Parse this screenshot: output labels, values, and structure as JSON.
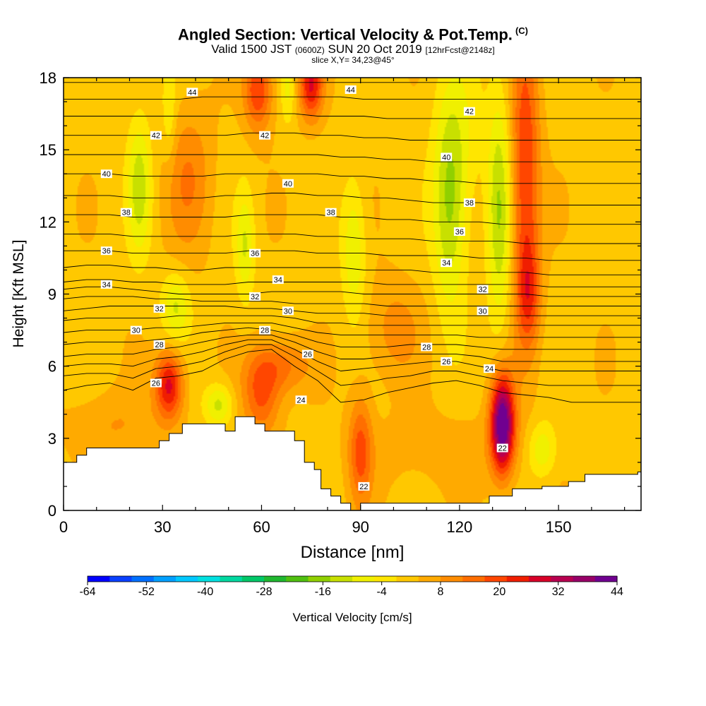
{
  "header": {
    "title": "Angled Section: Vertical Velocity & Pot.Temp.",
    "copyright": "(C)",
    "valid_prefix": "Valid 1500 JST",
    "valid_zulu": "(0600Z)",
    "valid_date": "SUN 20 Oct 2019",
    "forecast": "[12hrFcst@2148z]",
    "slice": "slice X,Y= 34,23@45°"
  },
  "chart_data": {
    "type": "heatmap",
    "xlabel": "Distance [nm]",
    "ylabel": "Height [Kft MSL]",
    "xlim": [
      0,
      175
    ],
    "ylim": [
      0,
      18
    ],
    "x_ticks": [
      "0",
      "30",
      "60",
      "90",
      "120",
      "150"
    ],
    "y_ticks": [
      "0",
      "3",
      "6",
      "9",
      "12",
      "15",
      "18"
    ],
    "terrain_top_kft": [
      [
        0,
        2.0
      ],
      [
        4,
        2.0
      ],
      [
        4,
        2.3
      ],
      [
        7,
        2.3
      ],
      [
        7,
        2.6
      ],
      [
        11,
        2.6
      ],
      [
        11,
        2.6
      ],
      [
        29,
        2.6
      ],
      [
        29,
        2.9
      ],
      [
        32,
        2.9
      ],
      [
        32,
        3.2
      ],
      [
        36,
        3.2
      ],
      [
        36,
        3.6
      ],
      [
        49,
        3.6
      ],
      [
        49,
        3.3
      ],
      [
        52,
        3.3
      ],
      [
        52,
        3.9
      ],
      [
        58,
        3.9
      ],
      [
        58,
        3.6
      ],
      [
        61,
        3.6
      ],
      [
        61,
        3.3
      ],
      [
        70,
        3.3
      ],
      [
        70,
        2.9
      ],
      [
        73,
        2.9
      ],
      [
        73,
        2.0
      ],
      [
        76,
        2.0
      ],
      [
        76,
        1.7
      ],
      [
        78,
        1.7
      ],
      [
        78,
        0.9
      ],
      [
        81,
        0.9
      ],
      [
        81,
        0.6
      ],
      [
        84,
        0.6
      ],
      [
        84,
        0.3
      ],
      [
        87,
        0.3
      ],
      [
        87,
        0.0
      ],
      [
        90,
        0.0
      ],
      [
        90,
        0.3
      ],
      [
        129,
        0.3
      ],
      [
        129,
        0.6
      ],
      [
        136,
        0.6
      ],
      [
        136,
        0.9
      ],
      [
        145,
        0.9
      ],
      [
        145,
        1.0
      ],
      [
        153,
        1.0
      ],
      [
        153,
        1.2
      ],
      [
        158,
        1.2
      ],
      [
        158,
        1.5
      ],
      [
        174,
        1.5
      ],
      [
        174,
        1.6
      ],
      [
        175,
        1.6
      ]
    ],
    "vertical_velocity_cells": [
      {
        "x": 32,
        "y": 5.2,
        "sx": 3,
        "sy": 1.0,
        "w": 26
      },
      {
        "x": 60,
        "y": 4.8,
        "sx": 4,
        "sy": 1.2,
        "w": 16
      },
      {
        "x": 66,
        "y": 6.0,
        "sx": 6,
        "sy": 0.8,
        "w": 12
      },
      {
        "x": 38,
        "y": 13.8,
        "sx": 5,
        "sy": 2.2,
        "w": 10
      },
      {
        "x": 59,
        "y": 17.5,
        "sx": 3,
        "sy": 1.2,
        "w": 20
      },
      {
        "x": 75,
        "y": 17.7,
        "sx": 2.5,
        "sy": 1.0,
        "w": 24
      },
      {
        "x": 90,
        "y": 2.5,
        "sx": 2.5,
        "sy": 1.6,
        "w": 16
      },
      {
        "x": 133,
        "y": 3.6,
        "sx": 2.5,
        "sy": 1.4,
        "w": 44
      },
      {
        "x": 140,
        "y": 14,
        "sx": 3,
        "sy": 4.5,
        "w": 20
      },
      {
        "x": 141,
        "y": 9,
        "sx": 2.5,
        "sy": 1.5,
        "w": 14
      },
      {
        "x": 15,
        "y": 3.5,
        "sx": 10,
        "sy": 1.0,
        "w": 6
      },
      {
        "x": 115,
        "y": 2.5,
        "sx": 18,
        "sy": 1.2,
        "w": 4
      },
      {
        "x": 100,
        "y": 7.5,
        "sx": 6,
        "sy": 1.5,
        "w": 8
      },
      {
        "x": 120,
        "y": 15.5,
        "sx": 5,
        "sy": 2.5,
        "w": -6
      },
      {
        "x": 23,
        "y": 13.5,
        "sx": 2.5,
        "sy": 2.0,
        "w": -14
      },
      {
        "x": 55,
        "y": 11,
        "sx": 2,
        "sy": 1.6,
        "w": -12
      },
      {
        "x": 88,
        "y": 10.8,
        "sx": 2.5,
        "sy": 2.0,
        "w": -12
      },
      {
        "x": 117,
        "y": 12.5,
        "sx": 3.5,
        "sy": 3.0,
        "w": -16
      },
      {
        "x": 132,
        "y": 12.5,
        "sx": 2.5,
        "sy": 3.5,
        "w": -16
      },
      {
        "x": 34,
        "y": 8.5,
        "sx": 3,
        "sy": 1.0,
        "w": -12
      },
      {
        "x": 47,
        "y": 4.4,
        "sx": 3,
        "sy": 0.6,
        "w": -14
      },
      {
        "x": 145,
        "y": 2.5,
        "sx": 3,
        "sy": 0.8,
        "w": -12
      },
      {
        "x": 32,
        "y": 16.5,
        "sx": 1.5,
        "sy": 1.5,
        "w": -8
      },
      {
        "x": 68,
        "y": 17.5,
        "sx": 1.5,
        "sy": 1.0,
        "w": -8
      }
    ],
    "pot_temp_contours": [
      {
        "t": 24,
        "y": [
          5.0,
          5.2,
          5.3,
          5.0,
          5.5,
          5.6,
          5.8,
          6.3,
          6.6,
          6.7,
          6.0,
          5.4,
          4.5,
          4.6,
          4.9,
          5.1,
          5.3,
          5.4,
          5.2,
          4.9,
          4.8,
          4.7,
          4.5,
          4.5,
          4.5,
          4.5
        ]
      },
      {
        "t": 25,
        "y": [
          5.6,
          5.7,
          5.7,
          5.5,
          5.9,
          6.0,
          6.2,
          6.6,
          6.9,
          6.9,
          6.4,
          5.8,
          5.2,
          5.3,
          5.5,
          5.6,
          5.8,
          5.8,
          5.6,
          5.4,
          5.3,
          5.2,
          5.2,
          5.2,
          5.2,
          5.2
        ]
      },
      {
        "t": 26,
        "y": [
          6.0,
          6.1,
          6.1,
          6.0,
          6.3,
          6.4,
          6.6,
          6.9,
          7.1,
          7.1,
          6.7,
          6.2,
          5.8,
          5.9,
          6.0,
          6.1,
          6.2,
          6.2,
          6.0,
          5.8,
          5.8,
          5.8,
          5.8,
          5.8,
          5.8,
          5.8
        ]
      },
      {
        "t": 27,
        "y": [
          6.4,
          6.5,
          6.5,
          6.5,
          6.7,
          6.8,
          7.0,
          7.2,
          7.3,
          7.3,
          7.0,
          6.6,
          6.3,
          6.3,
          6.4,
          6.5,
          6.5,
          6.5,
          6.4,
          6.2,
          6.2,
          6.2,
          6.2,
          6.2,
          6.2,
          6.2
        ]
      },
      {
        "t": 28,
        "y": [
          6.9,
          7.0,
          7.0,
          7.0,
          7.1,
          7.2,
          7.4,
          7.5,
          7.6,
          7.5,
          7.3,
          7.0,
          6.8,
          6.8,
          6.8,
          6.9,
          6.9,
          6.9,
          6.8,
          6.7,
          6.7,
          6.7,
          6.7,
          6.7,
          6.7,
          6.7
        ]
      },
      {
        "t": 29,
        "y": [
          7.4,
          7.5,
          7.5,
          7.5,
          7.6,
          7.6,
          7.7,
          7.8,
          7.8,
          7.8,
          7.6,
          7.4,
          7.3,
          7.3,
          7.3,
          7.3,
          7.3,
          7.3,
          7.2,
          7.2,
          7.2,
          7.2,
          7.2,
          7.2,
          7.2,
          7.2
        ]
      },
      {
        "t": 30,
        "y": [
          7.9,
          8.0,
          8.0,
          8.0,
          8.0,
          8.1,
          8.1,
          8.1,
          8.1,
          8.1,
          8.0,
          7.8,
          7.8,
          7.7,
          7.7,
          7.7,
          7.7,
          7.7,
          7.7,
          7.7,
          7.7,
          7.7,
          7.7,
          7.7,
          7.7,
          7.7
        ]
      },
      {
        "t": 31,
        "y": [
          8.3,
          8.4,
          8.5,
          8.5,
          8.5,
          8.5,
          8.5,
          8.5,
          8.4,
          8.4,
          8.3,
          8.2,
          8.2,
          8.2,
          8.1,
          8.1,
          8.1,
          8.1,
          8.1,
          8.1,
          8.1,
          8.1,
          8.1,
          8.1,
          8.1,
          8.1
        ]
      },
      {
        "t": 32,
        "y": [
          8.8,
          8.9,
          8.9,
          8.9,
          8.8,
          8.8,
          8.7,
          8.7,
          8.7,
          8.7,
          8.6,
          8.6,
          8.6,
          8.6,
          8.5,
          8.5,
          8.5,
          8.5,
          8.5,
          8.5,
          8.5,
          8.5,
          8.5,
          8.5,
          8.5,
          8.5
        ]
      },
      {
        "t": 33,
        "y": [
          9.2,
          9.3,
          9.3,
          9.2,
          9.1,
          9.0,
          9.0,
          9.0,
          9.0,
          9.1,
          9.1,
          9.1,
          9.1,
          9.0,
          9.0,
          9.0,
          9.0,
          9.0,
          9.0,
          9.0,
          9.0,
          8.9,
          8.9,
          8.9,
          8.9,
          8.9
        ]
      },
      {
        "t": 34,
        "y": [
          9.5,
          9.6,
          9.6,
          9.5,
          9.5,
          9.4,
          9.4,
          9.4,
          9.5,
          9.5,
          9.5,
          9.5,
          9.5,
          9.5,
          9.4,
          9.4,
          9.4,
          9.4,
          9.4,
          9.4,
          9.4,
          9.3,
          9.3,
          9.3,
          9.3,
          9.3
        ]
      },
      {
        "t": 35,
        "y": [
          10.1,
          10.2,
          10.2,
          10.1,
          10.1,
          10.0,
          10.0,
          10.1,
          10.1,
          10.1,
          10.1,
          10.1,
          10.1,
          10.0,
          10.0,
          10.0,
          9.9,
          9.9,
          9.9,
          9.9,
          9.9,
          9.8,
          9.8,
          9.8,
          9.8,
          9.8
        ]
      },
      {
        "t": 36,
        "y": [
          10.8,
          10.8,
          10.8,
          10.7,
          10.7,
          10.7,
          10.7,
          10.7,
          10.8,
          10.8,
          10.8,
          10.7,
          10.7,
          10.7,
          10.6,
          10.6,
          10.6,
          10.6,
          10.5,
          10.5,
          10.5,
          10.4,
          10.4,
          10.4,
          10.4,
          10.4
        ]
      },
      {
        "t": 37,
        "y": [
          11.5,
          11.5,
          11.5,
          11.4,
          11.4,
          11.4,
          11.4,
          11.4,
          11.5,
          11.5,
          11.5,
          11.4,
          11.4,
          11.3,
          11.3,
          11.3,
          11.2,
          11.2,
          11.2,
          11.2,
          11.1,
          11.1,
          11.1,
          11.1,
          11.1,
          11.1
        ]
      },
      {
        "t": 38,
        "y": [
          12.3,
          12.3,
          12.3,
          12.2,
          12.2,
          12.2,
          12.2,
          12.2,
          12.3,
          12.3,
          12.3,
          12.3,
          12.2,
          12.2,
          12.1,
          12.1,
          12.0,
          12.0,
          12.0,
          11.9,
          11.9,
          11.9,
          11.9,
          11.9,
          11.9,
          11.9
        ]
      },
      {
        "t": 39,
        "y": [
          13.1,
          13.1,
          13.1,
          13.0,
          13.0,
          13.0,
          13.0,
          13.1,
          13.1,
          13.2,
          13.2,
          13.1,
          13.1,
          13.0,
          13.0,
          12.9,
          12.8,
          12.8,
          12.8,
          12.7,
          12.7,
          12.7,
          12.7,
          12.7,
          12.7,
          12.7
        ]
      },
      {
        "t": 40,
        "y": [
          14.0,
          14.0,
          14.0,
          13.9,
          13.9,
          13.9,
          13.9,
          14.0,
          14.0,
          14.0,
          14.0,
          14.0,
          13.9,
          13.9,
          13.8,
          13.8,
          13.7,
          13.7,
          13.6,
          13.6,
          13.6,
          13.6,
          13.6,
          13.6,
          13.6,
          13.6
        ]
      },
      {
        "t": 41,
        "y": [
          14.8,
          14.8,
          14.8,
          14.8,
          14.8,
          14.8,
          14.8,
          14.8,
          14.8,
          14.8,
          14.8,
          14.8,
          14.7,
          14.7,
          14.6,
          14.6,
          14.5,
          14.5,
          14.5,
          14.5,
          14.5,
          14.5,
          14.5,
          14.5,
          14.5,
          14.5
        ]
      },
      {
        "t": 42,
        "y": [
          15.6,
          15.6,
          15.6,
          15.6,
          15.6,
          15.6,
          15.6,
          15.6,
          15.7,
          15.7,
          15.7,
          15.6,
          15.6,
          15.5,
          15.5,
          15.4,
          15.4,
          15.4,
          15.4,
          15.4,
          15.4,
          15.4,
          15.4,
          15.4,
          15.4,
          15.4
        ]
      },
      {
        "t": 43,
        "y": [
          16.4,
          16.4,
          16.4,
          16.4,
          16.4,
          16.4,
          16.4,
          16.4,
          16.5,
          16.5,
          16.5,
          16.4,
          16.4,
          16.4,
          16.3,
          16.3,
          16.3,
          16.3,
          16.3,
          16.3,
          16.3,
          16.3,
          16.3,
          16.3,
          16.3,
          16.3
        ]
      },
      {
        "t": 44,
        "y": [
          17.1,
          17.1,
          17.1,
          17.1,
          17.1,
          17.1,
          17.2,
          17.2,
          17.2,
          17.2,
          17.2,
          17.2,
          17.2,
          17.1,
          17.1,
          17.1,
          17.1,
          17.1,
          17.1,
          17.1,
          17.1,
          17.1,
          17.1,
          17.1,
          17.1,
          17.1
        ]
      },
      {
        "t": 45,
        "y": [
          17.8,
          17.8,
          17.8,
          17.8,
          17.8,
          17.8,
          17.8,
          17.8,
          17.8,
          17.8,
          17.8,
          17.8,
          17.8,
          17.8,
          17.8,
          17.8,
          17.8,
          17.8,
          17.8,
          17.8,
          17.8,
          17.8,
          17.8,
          17.8,
          17.8,
          17.8
        ]
      }
    ],
    "contour_labels": [
      {
        "text": "44",
        "x": 39,
        "y": 17.4
      },
      {
        "text": "44",
        "x": 87,
        "y": 17.5
      },
      {
        "text": "42",
        "x": 28,
        "y": 15.6
      },
      {
        "text": "42",
        "x": 61,
        "y": 15.6
      },
      {
        "text": "42",
        "x": 123,
        "y": 16.6
      },
      {
        "text": "40",
        "x": 13,
        "y": 14.0
      },
      {
        "text": "40",
        "x": 68,
        "y": 13.6
      },
      {
        "text": "40",
        "x": 116,
        "y": 14.7
      },
      {
        "text": "38",
        "x": 19,
        "y": 12.4
      },
      {
        "text": "38",
        "x": 81,
        "y": 12.4
      },
      {
        "text": "38",
        "x": 123,
        "y": 12.8
      },
      {
        "text": "36",
        "x": 13,
        "y": 10.8
      },
      {
        "text": "36",
        "x": 58,
        "y": 10.7
      },
      {
        "text": "36",
        "x": 120,
        "y": 11.6
      },
      {
        "text": "34",
        "x": 13,
        "y": 9.4
      },
      {
        "text": "34",
        "x": 65,
        "y": 9.6
      },
      {
        "text": "34",
        "x": 116,
        "y": 10.3
      },
      {
        "text": "32",
        "x": 29,
        "y": 8.4
      },
      {
        "text": "32",
        "x": 58,
        "y": 8.9
      },
      {
        "text": "32",
        "x": 127,
        "y": 9.2
      },
      {
        "text": "30",
        "x": 22,
        "y": 7.5
      },
      {
        "text": "30",
        "x": 68,
        "y": 8.3
      },
      {
        "text": "30",
        "x": 127,
        "y": 8.3
      },
      {
        "text": "28",
        "x": 29,
        "y": 6.9
      },
      {
        "text": "28",
        "x": 61,
        "y": 7.5
      },
      {
        "text": "28",
        "x": 110,
        "y": 6.8
      },
      {
        "text": "26",
        "x": 28,
        "y": 5.3
      },
      {
        "text": "26",
        "x": 74,
        "y": 6.5
      },
      {
        "text": "26",
        "x": 116,
        "y": 6.2
      },
      {
        "text": "24",
        "x": 72,
        "y": 4.6
      },
      {
        "text": "24",
        "x": 129,
        "y": 5.9
      },
      {
        "text": "22",
        "x": 133,
        "y": 2.6
      },
      {
        "text": "22",
        "x": 91,
        "y": 1.0
      }
    ],
    "colorbar": {
      "label": "Vertical Velocity [cm/s]",
      "ticks": [
        "-64",
        "-52",
        "-40",
        "-28",
        "-16",
        "-4",
        "8",
        "20",
        "32",
        "44"
      ],
      "colors": [
        "#0000ff",
        "#0a40ff",
        "#0070ff",
        "#00a0ff",
        "#00c8ff",
        "#00e0e0",
        "#00d8a0",
        "#00c868",
        "#20b830",
        "#50c010",
        "#90d000",
        "#c8e000",
        "#f0f000",
        "#ffe600",
        "#ffc800",
        "#ffaa00",
        "#ff8c00",
        "#ff6e00",
        "#ff4600",
        "#f01e00",
        "#d80028",
        "#b80050",
        "#980068",
        "#700090"
      ]
    }
  }
}
